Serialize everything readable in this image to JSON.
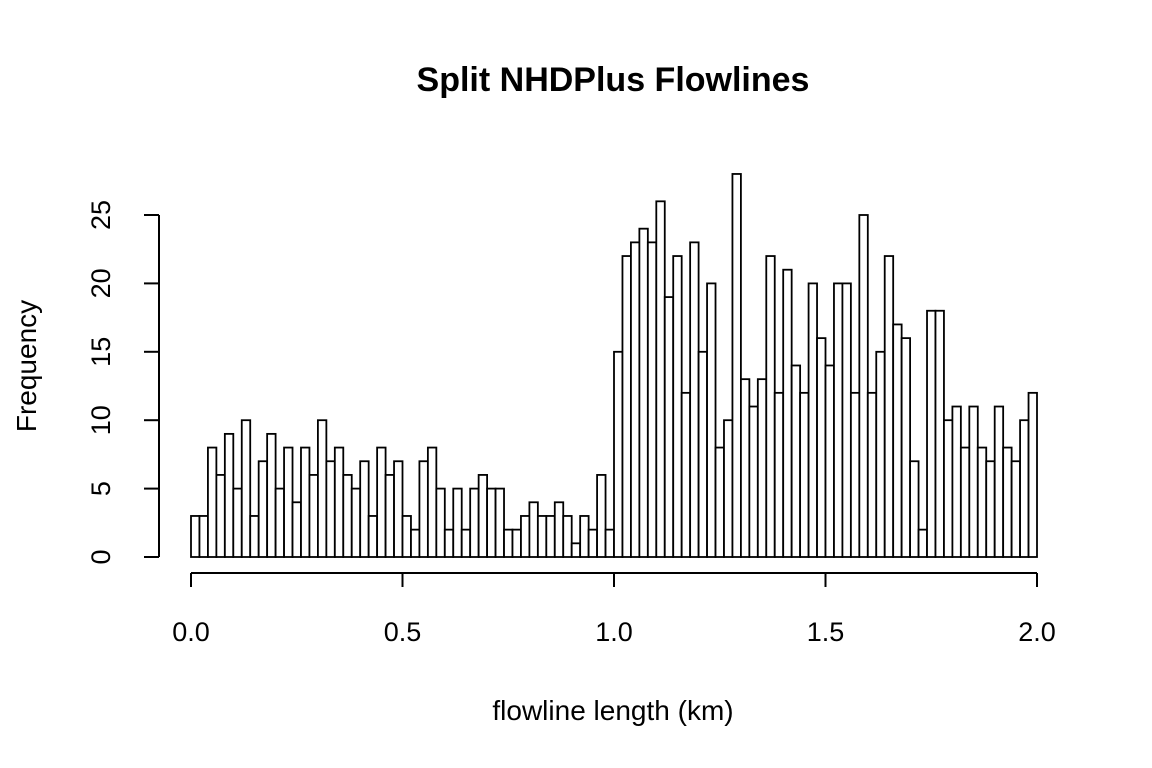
{
  "chart_data": {
    "type": "bar",
    "subtype": "histogram",
    "title": "Split NHDPlus Flowlines",
    "xlabel": "flowline length (km)",
    "ylabel": "Frequency",
    "xlim": [
      0,
      2
    ],
    "ylim": [
      0,
      28
    ],
    "x_ticks": [
      "0.0",
      "0.5",
      "1.0",
      "1.5",
      "2.0"
    ],
    "y_ticks": [
      "0",
      "5",
      "10",
      "15",
      "20",
      "25"
    ],
    "bin_width": 0.02,
    "bin_start": 0,
    "values": [
      3,
      3,
      8,
      6,
      9,
      5,
      10,
      3,
      7,
      9,
      5,
      8,
      4,
      8,
      6,
      10,
      7,
      8,
      6,
      5,
      7,
      3,
      8,
      6,
      7,
      3,
      2,
      7,
      8,
      5,
      2,
      5,
      2,
      5,
      6,
      5,
      5,
      2,
      2,
      3,
      4,
      3,
      3,
      4,
      3,
      1,
      3,
      2,
      6,
      2,
      15,
      22,
      23,
      24,
      23,
      26,
      19,
      22,
      12,
      23,
      15,
      20,
      8,
      10,
      28,
      13,
      11,
      13,
      22,
      12,
      21,
      14,
      12,
      20,
      16,
      14,
      20,
      20,
      12,
      25,
      12,
      15,
      22,
      17,
      16,
      7,
      2,
      18,
      18,
      10,
      11,
      8,
      11,
      8,
      7,
      11,
      8,
      7,
      10,
      12
    ],
    "grid": false,
    "legend": "none",
    "bar_fill": "#ffffff",
    "bar_stroke": "#000000"
  }
}
